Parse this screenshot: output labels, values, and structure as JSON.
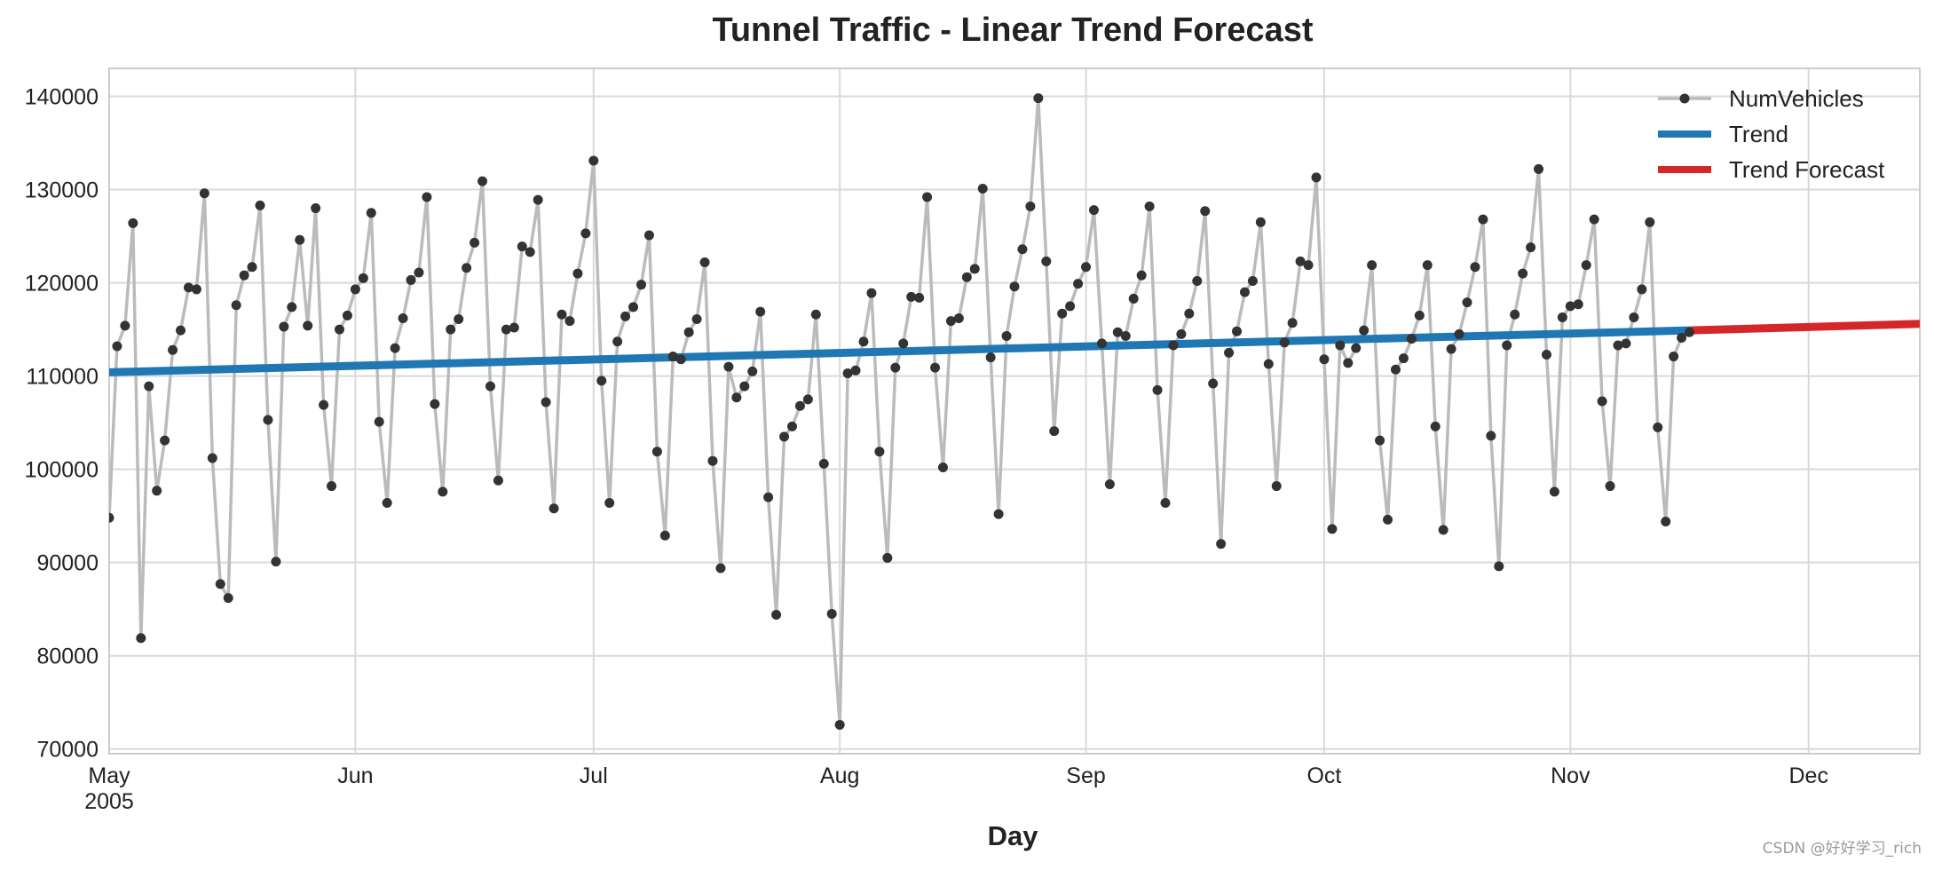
{
  "chart_data": {
    "type": "line",
    "title": "Tunnel Traffic - Linear Trend Forecast",
    "xlabel": "Day",
    "ylabel": "",
    "ylim": [
      69500,
      143000
    ],
    "xlim_days": [
      0,
      228
    ],
    "start_date": "2005-05-01",
    "x_ticks": [
      {
        "day": 0,
        "label": "May",
        "sublabel": "2005"
      },
      {
        "day": 31,
        "label": "Jun",
        "sublabel": ""
      },
      {
        "day": 61,
        "label": "Jul",
        "sublabel": ""
      },
      {
        "day": 92,
        "label": "Aug",
        "sublabel": ""
      },
      {
        "day": 123,
        "label": "Sep",
        "sublabel": ""
      },
      {
        "day": 153,
        "label": "Oct",
        "sublabel": ""
      },
      {
        "day": 184,
        "label": "Nov",
        "sublabel": ""
      },
      {
        "day": 214,
        "label": "Dec",
        "sublabel": ""
      }
    ],
    "y_ticks": [
      {
        "value": 70000,
        "label": "70000"
      },
      {
        "value": 80000,
        "label": "80000"
      },
      {
        "value": 90000,
        "label": "90000"
      },
      {
        "value": 100000,
        "label": "100000"
      },
      {
        "value": 110000,
        "label": "110000"
      },
      {
        "value": 120000,
        "label": "120000"
      },
      {
        "value": 130000,
        "label": "130000"
      },
      {
        "value": 140000,
        "label": "140000"
      }
    ],
    "grid": true,
    "legend_position": "top-right",
    "series": [
      {
        "name": "NumVehicles",
        "color": "#bbbbbb",
        "marker_color": "#333333",
        "start_day": 0,
        "values": [
          94800,
          113200,
          115400,
          126400,
          81900,
          108900,
          97700,
          103100,
          112800,
          114900,
          119500,
          119300,
          129600,
          101200,
          87700,
          86200,
          117600,
          120800,
          121700,
          128300,
          105300,
          90100,
          115300,
          117400,
          124600,
          115400,
          128000,
          106900,
          98200,
          115000,
          116500,
          119300,
          120500,
          127500,
          105100,
          96400,
          113000,
          116200,
          120300,
          121100,
          129200,
          107000,
          97600,
          115000,
          116100,
          121600,
          124300,
          130900,
          108900,
          98800,
          115000,
          115200,
          123900,
          123300,
          128900,
          107200,
          95800,
          116600,
          115900,
          121000,
          125300,
          133100,
          109500,
          96400,
          113700,
          116400,
          117400,
          119800,
          125100,
          101900,
          92900,
          112100,
          111800,
          114700,
          116100,
          122200,
          100900,
          89400,
          111000,
          107700,
          108900,
          110500,
          116900,
          97000,
          84400,
          103500,
          104600,
          106800,
          107500,
          116600,
          100600,
          84500,
          72600,
          110300,
          110600,
          113700,
          118900,
          101900,
          90500,
          110900,
          113500,
          118500,
          118400,
          129200,
          110900,
          100200,
          115900,
          116200,
          120600,
          121500,
          130100,
          112000,
          95200,
          114300,
          119600,
          123600,
          128200,
          139800,
          122300,
          104100,
          116700,
          117500,
          119900,
          121700,
          127800,
          113500,
          98400,
          114700,
          114300,
          118300,
          120800,
          128200,
          108500,
          96400,
          113300,
          114500,
          116700,
          120200,
          127700,
          109200,
          92000,
          112500,
          114800,
          119000,
          120200,
          126500,
          111300,
          98200,
          113600,
          115700,
          122300,
          121900,
          131300,
          111800,
          93600,
          113300,
          111400,
          113000,
          114900,
          121900,
          103100,
          94600,
          110700,
          111900,
          114000,
          116500,
          121900,
          104600,
          93500,
          112900,
          114500,
          117900,
          121700,
          126800,
          103600,
          89600,
          113300,
          116600,
          121000,
          123800,
          132200,
          112300,
          97600,
          116300,
          117500,
          117700,
          121900,
          126800,
          107300,
          98200,
          113300,
          113500,
          116300,
          119300,
          126500,
          104500,
          94400,
          112100,
          114100,
          114700
        ]
      },
      {
        "name": "Trend",
        "color": "#1f77b4",
        "start_day": 0,
        "end_day": 199,
        "start_value": 110400,
        "end_value": 114900
      },
      {
        "name": "Trend Forecast",
        "color": "#d62728",
        "start_day": 199,
        "end_day": 228,
        "start_value": 114900,
        "end_value": 115600
      }
    ]
  },
  "watermark": "CSDN @好好学习_rich"
}
